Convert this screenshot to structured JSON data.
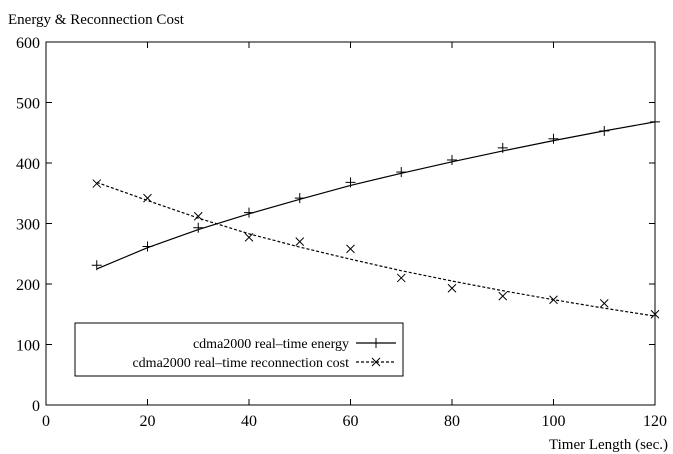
{
  "chart_data": {
    "type": "line",
    "title": "",
    "ylabel": "Energy & Reconnection Cost",
    "xlabel": "Timer Length (sec.)",
    "xlim": [
      0,
      120
    ],
    "ylim": [
      0,
      600
    ],
    "xticks": [
      0,
      20,
      40,
      60,
      80,
      100,
      120
    ],
    "yticks": [
      0,
      100,
      200,
      300,
      400,
      500,
      600
    ],
    "grid": false,
    "legend_position": "bottom-left",
    "series": [
      {
        "name": "cdma2000 real–time energy",
        "marker": "plus",
        "line_style": "solid",
        "points": {
          "x": [
            10,
            20,
            30,
            40,
            50,
            60,
            70,
            80,
            90,
            100,
            110,
            120
          ],
          "y": [
            231,
            262,
            293,
            318,
            342,
            368,
            385,
            405,
            425,
            440,
            453,
            468
          ]
        },
        "fit": {
          "x": [
            10,
            20,
            30,
            40,
            50,
            60,
            70,
            80,
            90,
            100,
            110,
            120
          ],
          "y": [
            225,
            260,
            290,
            316,
            340,
            363,
            383,
            402,
            420,
            437,
            453,
            468
          ]
        }
      },
      {
        "name": "cdma2000 real–time reconnection cost",
        "marker": "cross",
        "line_style": "dashed",
        "points": {
          "x": [
            10,
            20,
            30,
            40,
            50,
            60,
            70,
            80,
            90,
            100,
            110,
            120
          ],
          "y": [
            366,
            342,
            312,
            277,
            270,
            258,
            210,
            193,
            180,
            174,
            168,
            150
          ]
        },
        "fit": {
          "x": [
            10,
            20,
            30,
            40,
            50,
            60,
            70,
            80,
            90,
            100,
            110,
            120
          ],
          "y": [
            368,
            338,
            309,
            283,
            261,
            241,
            222,
            205,
            189,
            174,
            160,
            147
          ]
        }
      }
    ]
  }
}
